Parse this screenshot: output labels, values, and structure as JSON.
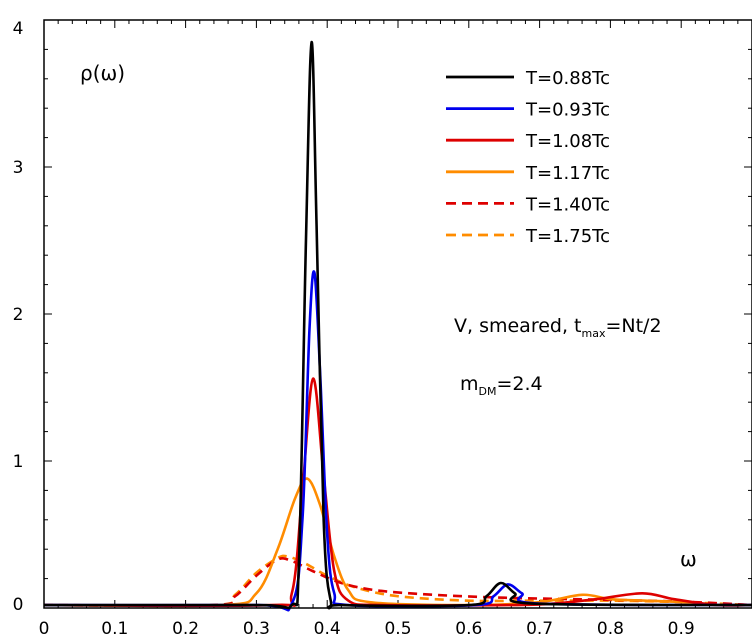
{
  "chart_data": {
    "type": "line",
    "title": "",
    "xlabel": "ω",
    "ylabel": "ρ(ω)",
    "xlim": [
      0,
      1
    ],
    "ylim": [
      0,
      4
    ],
    "x_ticks": [
      0,
      0.1,
      0.2,
      0.3,
      0.4,
      0.5,
      0.6,
      0.7,
      0.8,
      0.9
    ],
    "x_tick_labels": [
      "0",
      "0.1",
      "0.2",
      "0.3",
      "0.4",
      "0.5",
      "0.6",
      "0.7",
      "0.8",
      "0.9"
    ],
    "y_ticks": [
      0,
      1,
      2,
      3,
      4
    ],
    "y_tick_labels": [
      "0",
      "1",
      "2",
      "3",
      "4"
    ],
    "legend_position": "top-right",
    "annotations": {
      "line1_prefix": "V, smeared, t",
      "line1_sub": "max",
      "line1_suffix": "=Nt/2",
      "line2_prefix": "m",
      "line2_sub": "DM",
      "line2_suffix": "=2.4"
    },
    "series": [
      {
        "name": "T=0.88Tc",
        "color": "#000000",
        "dash": "solid",
        "points": [
          [
            0.0,
            0.02
          ],
          [
            0.3,
            0.02
          ],
          [
            0.35,
            0.02
          ],
          [
            0.36,
            0.3
          ],
          [
            0.37,
            2.5
          ],
          [
            0.378,
            3.85
          ],
          [
            0.385,
            2.6
          ],
          [
            0.395,
            0.6
          ],
          [
            0.405,
            0.05
          ],
          [
            0.42,
            0.02
          ],
          [
            0.6,
            0.02
          ],
          [
            0.625,
            0.08
          ],
          [
            0.645,
            0.17
          ],
          [
            0.665,
            0.1
          ],
          [
            0.69,
            0.03
          ],
          [
            1.0,
            0.02
          ]
        ]
      },
      {
        "name": "T=0.93Tc",
        "color": "#0000ee",
        "dash": "solid",
        "points": [
          [
            0.0,
            0.02
          ],
          [
            0.3,
            0.02
          ],
          [
            0.35,
            0.03
          ],
          [
            0.365,
            0.6
          ],
          [
            0.375,
            1.9
          ],
          [
            0.382,
            2.28
          ],
          [
            0.39,
            1.6
          ],
          [
            0.4,
            0.5
          ],
          [
            0.41,
            0.1
          ],
          [
            0.43,
            0.02
          ],
          [
            0.61,
            0.02
          ],
          [
            0.635,
            0.08
          ],
          [
            0.655,
            0.16
          ],
          [
            0.675,
            0.1
          ],
          [
            0.7,
            0.03
          ],
          [
            1.0,
            0.02
          ]
        ]
      },
      {
        "name": "T=1.08Tc",
        "color": "#dd0000",
        "dash": "solid",
        "points": [
          [
            0.0,
            0.02
          ],
          [
            0.32,
            0.02
          ],
          [
            0.35,
            0.1
          ],
          [
            0.365,
            0.8
          ],
          [
            0.38,
            1.56
          ],
          [
            0.395,
            0.9
          ],
          [
            0.41,
            0.25
          ],
          [
            0.43,
            0.05
          ],
          [
            0.48,
            0.02
          ],
          [
            0.66,
            0.02
          ],
          [
            0.72,
            0.03
          ],
          [
            0.78,
            0.06
          ],
          [
            0.845,
            0.1
          ],
          [
            0.89,
            0.06
          ],
          [
            0.95,
            0.02
          ],
          [
            1.0,
            0.02
          ]
        ]
      },
      {
        "name": "T=1.17Tc",
        "color": "#ff8c00",
        "dash": "solid",
        "points": [
          [
            0.0,
            0.02
          ],
          [
            0.25,
            0.02
          ],
          [
            0.3,
            0.1
          ],
          [
            0.33,
            0.4
          ],
          [
            0.355,
            0.75
          ],
          [
            0.372,
            0.88
          ],
          [
            0.39,
            0.7
          ],
          [
            0.41,
            0.35
          ],
          [
            0.43,
            0.12
          ],
          [
            0.46,
            0.04
          ],
          [
            0.6,
            0.02
          ],
          [
            0.7,
            0.04
          ],
          [
            0.76,
            0.09
          ],
          [
            0.8,
            0.06
          ],
          [
            0.85,
            0.05
          ],
          [
            0.9,
            0.04
          ],
          [
            0.95,
            0.02
          ],
          [
            1.0,
            0.02
          ]
        ]
      },
      {
        "name": "T=1.40Tc",
        "color": "#dd0000",
        "dash": "dashed",
        "points": [
          [
            0.0,
            0.02
          ],
          [
            0.24,
            0.02
          ],
          [
            0.27,
            0.08
          ],
          [
            0.3,
            0.22
          ],
          [
            0.33,
            0.33
          ],
          [
            0.35,
            0.32
          ],
          [
            0.38,
            0.25
          ],
          [
            0.42,
            0.17
          ],
          [
            0.47,
            0.12
          ],
          [
            0.55,
            0.09
          ],
          [
            0.65,
            0.07
          ],
          [
            0.75,
            0.06
          ],
          [
            0.85,
            0.05
          ],
          [
            0.92,
            0.04
          ],
          [
            1.0,
            0.02
          ]
        ]
      },
      {
        "name": "T=1.75Tc",
        "color": "#ff8c00",
        "dash": "dashed",
        "points": [
          [
            0.0,
            0.02
          ],
          [
            0.24,
            0.02
          ],
          [
            0.27,
            0.09
          ],
          [
            0.3,
            0.24
          ],
          [
            0.33,
            0.34
          ],
          [
            0.345,
            0.35
          ],
          [
            0.37,
            0.3
          ],
          [
            0.4,
            0.22
          ],
          [
            0.44,
            0.14
          ],
          [
            0.5,
            0.08
          ],
          [
            0.6,
            0.05
          ],
          [
            0.7,
            0.05
          ],
          [
            0.8,
            0.05
          ],
          [
            0.9,
            0.04
          ],
          [
            1.0,
            0.02
          ]
        ]
      }
    ]
  }
}
